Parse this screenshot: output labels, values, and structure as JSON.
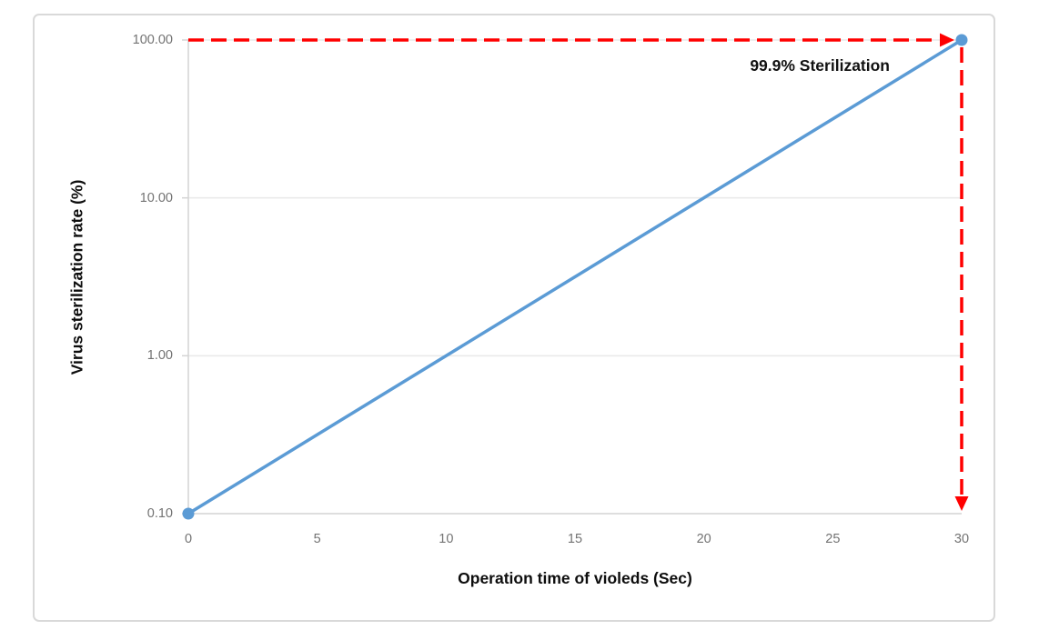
{
  "chart_data": {
    "type": "line",
    "title": "",
    "xlabel": "Operation time of violeds (Sec)",
    "ylabel": "Virus sterilization rate (%)",
    "x_scale": "linear",
    "y_scale": "log",
    "xlim": [
      0,
      30
    ],
    "ylim": [
      0.1,
      100
    ],
    "x_ticks": {
      "values": [
        0,
        5,
        10,
        15,
        20,
        25,
        30
      ],
      "labels": [
        "0",
        "5",
        "10",
        "15",
        "20",
        "25",
        "30"
      ]
    },
    "y_ticks": {
      "values": [
        100,
        10,
        1,
        0.1
      ],
      "labels": [
        "100.00",
        "10.00",
        "1.00",
        "0.10"
      ]
    },
    "grid": "horizontal-only",
    "legend": "none",
    "series": [
      {
        "name": "Virus sterilization rate",
        "color": "#5b9bd5",
        "marker": "circle",
        "points": [
          {
            "x": 0,
            "y": 0.1
          },
          {
            "x": 30,
            "y": 100
          }
        ]
      }
    ],
    "annotations": [
      {
        "text": "99.9% Sterilization",
        "near": {
          "x": 30,
          "y": 100
        }
      }
    ],
    "guide_lines": [
      {
        "type": "horizontal",
        "y": 100,
        "from_x": 0,
        "to_x": 30,
        "style": "dashed",
        "color": "#ff0000",
        "arrow": "end"
      },
      {
        "type": "vertical",
        "x": 30,
        "from_y": 100,
        "to_y": 0.1,
        "style": "dashed",
        "color": "#ff0000",
        "arrow": "end"
      }
    ],
    "colors": {
      "series": "#5b9bd5",
      "guide": "#ff0000",
      "grid": "#e9e9e9",
      "axis": "#d4d4d4",
      "tick_text": "#737373",
      "title_text": "#0d0d0d",
      "frame_border": "#d9d9d9"
    }
  }
}
